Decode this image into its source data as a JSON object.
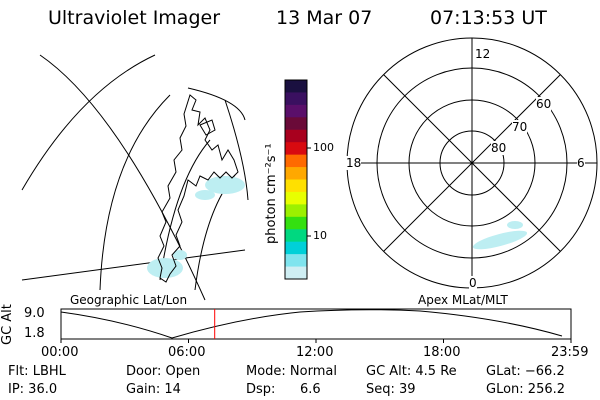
{
  "header": {
    "title": "Ultraviolet Imager",
    "date": "13 Mar 07",
    "time": "07:13:53 UT"
  },
  "left_panel": {
    "caption": "Geographic Lat/Lon",
    "patch_color": "#bdeef2"
  },
  "colorbar": {
    "unit_label": "photon cm⁻²s⁻¹",
    "ticks": [
      "100",
      "10"
    ],
    "colors": [
      "#1a1040",
      "#3a1060",
      "#5a0f6a",
      "#6a0a38",
      "#a8001e",
      "#d80a10",
      "#ff6a00",
      "#ffa800",
      "#ffe000",
      "#e8ff00",
      "#9cf000",
      "#34e010",
      "#00d880",
      "#00d0d8",
      "#7fe4ee",
      "#cfeef3"
    ]
  },
  "right_panel": {
    "caption": "Apex MLat/MLT",
    "mlt_labels": {
      "top": "12",
      "bottom": "0",
      "left": "18",
      "right": "6"
    },
    "lat_labels": [
      "60",
      "70",
      "80"
    ]
  },
  "timeline": {
    "ylabel": "GC Alt",
    "y_ticks": [
      "9.0",
      "1.8"
    ],
    "x_ticks": [
      "00:00",
      "06:00",
      "12:00",
      "18:00",
      "23:59"
    ],
    "current_time_fraction": 0.3013,
    "marker_color": "#ff0000"
  },
  "info": {
    "flt": "Flt: LBHL",
    "door": "Door: Open",
    "mode": "Mode: Normal",
    "gc_alt": "GC Alt: 4.5 Re",
    "glat": "GLat: −66.2",
    "ip": "IP: 36.0",
    "gain": "Gain: 14",
    "dsp_label": "Dsp:",
    "dsp_value": "6.6",
    "seq": "Seq: 39",
    "glon": "GLon: 256.2"
  }
}
